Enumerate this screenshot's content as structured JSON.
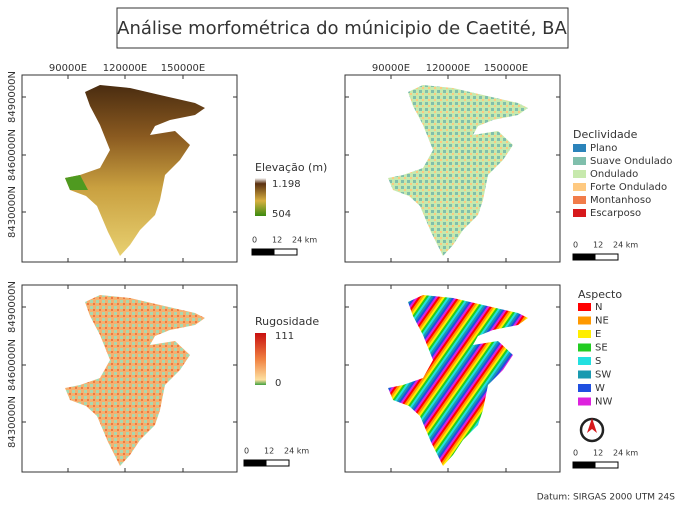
{
  "title": "Análise morfométrica do múnicipio de Caetité, BA",
  "x_labels": [
    "90000E",
    "120000E",
    "150000E"
  ],
  "y_labels": [
    "8490000N",
    "8460000N",
    "8430000N"
  ],
  "elevation": {
    "title": "Elevação (m)",
    "max": "1.198",
    "min": "504"
  },
  "slope": {
    "title": "Declividade",
    "items": [
      {
        "label": "Plano",
        "color": "#2b83ba"
      },
      {
        "label": "Suave Ondulado",
        "color": "#80bfac"
      },
      {
        "label": "Ondulado",
        "color": "#c7e9ad"
      },
      {
        "label": "Forte Ondulado",
        "color": "#fec980"
      },
      {
        "label": "Montanhoso",
        "color": "#f17c4a"
      },
      {
        "label": "Escarposo",
        "color": "#d7191c"
      }
    ]
  },
  "roughness": {
    "title": "Rugosidade",
    "max": "111",
    "min": "0"
  },
  "aspect": {
    "title": "Aspecto",
    "items": [
      {
        "label": "N",
        "color": "#ff0000"
      },
      {
        "label": "NE",
        "color": "#ff9900"
      },
      {
        "label": "E",
        "color": "#ffee00"
      },
      {
        "label": "SE",
        "color": "#22cc22"
      },
      {
        "label": "S",
        "color": "#22e0e0"
      },
      {
        "label": "SW",
        "color": "#1a9ab0"
      },
      {
        "label": "W",
        "color": "#1f4fe0"
      },
      {
        "label": "NW",
        "color": "#dd22dd"
      }
    ]
  },
  "scale_bar": [
    "0",
    "12",
    "24 km"
  ],
  "datum": "Datum: SIRGAS 2000 UTM 24S"
}
